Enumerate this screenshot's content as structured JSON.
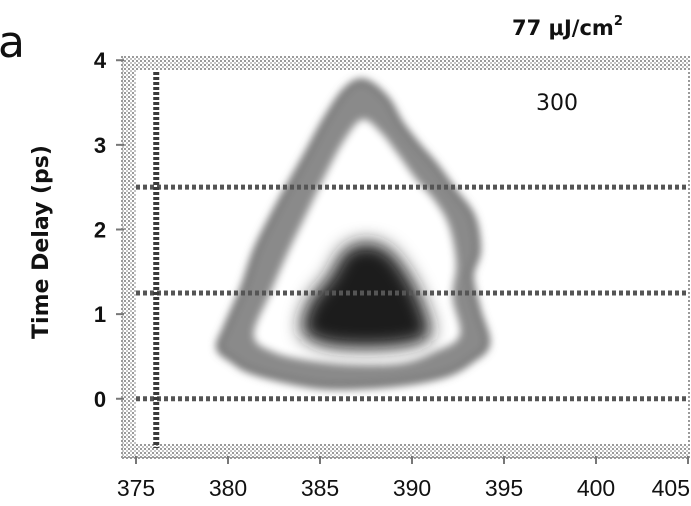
{
  "chart_data": {
    "type": "heatmap",
    "panel_label": "a",
    "fluence_value": "77 μJ/cm",
    "fluence_superscript": "2",
    "temperature_label": "300",
    "ylabel": "Time Delay (ps)",
    "xlabel": "",
    "xlim": [
      375,
      405
    ],
    "ylim": [
      -0.7,
      4.05
    ],
    "x_ticks": [
      {
        "value": 375,
        "label": "375"
      },
      {
        "value": 380,
        "label": "380"
      },
      {
        "value": 385,
        "label": "385"
      },
      {
        "value": 390,
        "label": "390"
      },
      {
        "value": 395,
        "label": "395"
      },
      {
        "value": 400,
        "label": "400"
      },
      {
        "value": 405,
        "label": "405"
      }
    ],
    "y_ticks": [
      {
        "value": 0,
        "label": "0"
      },
      {
        "value": 1,
        "label": "1"
      },
      {
        "value": 2,
        "label": "2"
      },
      {
        "value": 3,
        "label": "3"
      },
      {
        "value": 4,
        "label": "4"
      }
    ],
    "horizontal_reference_lines": [
      0,
      1.25,
      2.5
    ],
    "vertical_reference_line": 376.1,
    "colorscale": "grayscale (white = low, black = high)",
    "contours": [
      {
        "level": "outer",
        "color": "#8a8a8a",
        "points": [
          [
            380.3,
            0.45
          ],
          [
            379.5,
            0.6
          ],
          [
            379.9,
            0.85
          ],
          [
            380.8,
            1.3
          ],
          [
            381.5,
            1.75
          ],
          [
            382.4,
            2.15
          ],
          [
            383.4,
            2.55
          ],
          [
            384.3,
            2.9
          ],
          [
            385.3,
            3.3
          ],
          [
            386.4,
            3.65
          ],
          [
            387.4,
            3.75
          ],
          [
            388.6,
            3.55
          ],
          [
            389.4,
            3.25
          ],
          [
            390.3,
            3.0
          ],
          [
            391.3,
            2.75
          ],
          [
            392.3,
            2.45
          ],
          [
            393.3,
            2.15
          ],
          [
            393.6,
            1.75
          ],
          [
            393.2,
            1.45
          ],
          [
            393.6,
            1.05
          ],
          [
            394.1,
            0.65
          ],
          [
            393.2,
            0.45
          ],
          [
            392.0,
            0.3
          ],
          [
            390.0,
            0.2
          ],
          [
            387.5,
            0.15
          ],
          [
            385.0,
            0.15
          ],
          [
            382.5,
            0.25
          ],
          [
            381.0,
            0.35
          ]
        ]
      },
      {
        "level": "inner",
        "color": "#ffffff",
        "points": [
          [
            381.4,
            0.75
          ],
          [
            382.3,
            1.25
          ],
          [
            383.3,
            1.75
          ],
          [
            384.3,
            2.2
          ],
          [
            385.3,
            2.65
          ],
          [
            386.3,
            3.05
          ],
          [
            387.3,
            3.3
          ],
          [
            388.3,
            3.15
          ],
          [
            389.2,
            2.9
          ],
          [
            390.2,
            2.6
          ],
          [
            391.2,
            2.35
          ],
          [
            392.0,
            2.05
          ],
          [
            392.4,
            1.6
          ],
          [
            392.2,
            1.2
          ],
          [
            392.6,
            0.75
          ],
          [
            391.2,
            0.55
          ],
          [
            389.5,
            0.42
          ],
          [
            387.0,
            0.4
          ],
          [
            384.5,
            0.45
          ],
          [
            382.5,
            0.55
          ]
        ]
      },
      {
        "level": "core",
        "color": "#1a1a1a",
        "points": [
          [
            384.0,
            0.8
          ],
          [
            384.4,
            1.15
          ],
          [
            385.5,
            1.45
          ],
          [
            386.3,
            1.75
          ],
          [
            387.5,
            1.85
          ],
          [
            388.8,
            1.75
          ],
          [
            390.0,
            1.4
          ],
          [
            390.8,
            1.0
          ],
          [
            391.0,
            0.75
          ],
          [
            390.2,
            0.65
          ],
          [
            388.5,
            0.6
          ],
          [
            386.5,
            0.6
          ],
          [
            385.0,
            0.65
          ]
        ]
      }
    ]
  }
}
